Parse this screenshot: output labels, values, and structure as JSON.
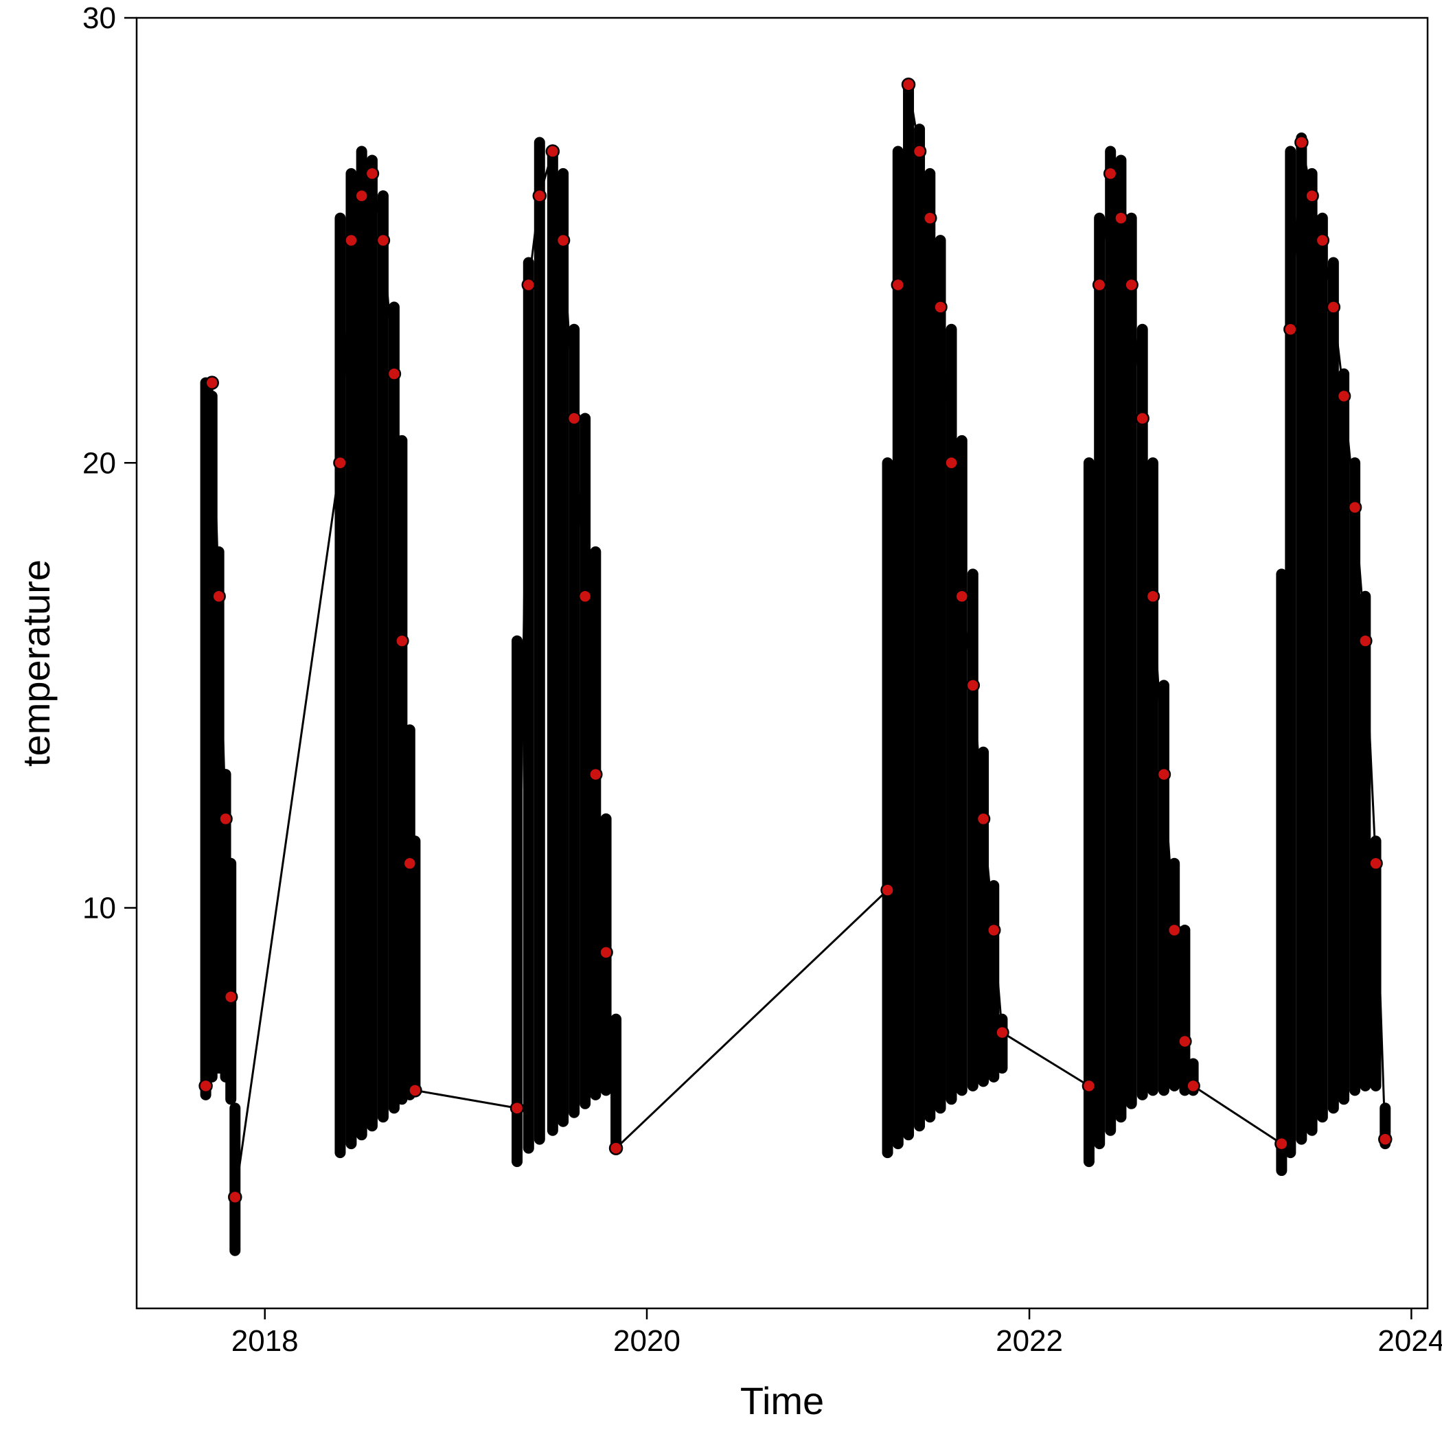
{
  "chart_data": {
    "type": "line",
    "title": "",
    "xlabel": "Time",
    "ylabel": "temperature",
    "x_scale": "date",
    "xlim": [
      "2017-05-01",
      "2024-02-01"
    ],
    "ylim": [
      1,
      30
    ],
    "x_ticks": [
      {
        "label": "2018",
        "value": "2018-01-01"
      },
      {
        "label": "2020",
        "value": "2020-01-01"
      },
      {
        "label": "2022",
        "value": "2022-01-01"
      },
      {
        "label": "2024",
        "value": "2024-01-01"
      }
    ],
    "y_ticks": [
      {
        "label": "10",
        "value": 10
      },
      {
        "label": "20",
        "value": 20
      },
      {
        "label": "30",
        "value": 30
      }
    ],
    "grid": false,
    "legend": "none",
    "marker_fill": "#cc1111",
    "marker_edge": "#000000",
    "line_color": "#000000",
    "series": [
      {
        "x": [
          "2017-09-10",
          "2017-09-22",
          "2017-10-05",
          "2017-10-18",
          "2017-10-28",
          "2017-11-05",
          "2018-05-25",
          "2018-06-15",
          "2018-07-05",
          "2018-07-25",
          "2018-08-15",
          "2018-09-05",
          "2018-09-20",
          "2018-10-05",
          "2018-10-15",
          "2019-04-28",
          "2019-05-20",
          "2019-06-10",
          "2019-07-05",
          "2019-07-25",
          "2019-08-15",
          "2019-09-05",
          "2019-09-25",
          "2019-10-15",
          "2019-11-03",
          "2021-04-05",
          "2021-04-25",
          "2021-05-15",
          "2021-06-05",
          "2021-06-25",
          "2021-07-15",
          "2021-08-05",
          "2021-08-25",
          "2021-09-15",
          "2021-10-05",
          "2021-10-25",
          "2021-11-10",
          "2022-04-25",
          "2022-05-15",
          "2022-06-05",
          "2022-06-25",
          "2022-07-15",
          "2022-08-05",
          "2022-08-25",
          "2022-09-15",
          "2022-10-05",
          "2022-10-25",
          "2022-11-10",
          "2023-04-28",
          "2023-05-15",
          "2023-06-05",
          "2023-06-25",
          "2023-07-15",
          "2023-08-05",
          "2023-08-25",
          "2023-09-15",
          "2023-10-05",
          "2023-10-25",
          "2023-11-12"
        ],
        "y": [
          6,
          21.8,
          17,
          12,
          8,
          3.5,
          20,
          25,
          26,
          26.5,
          25,
          22,
          16,
          11,
          5.9,
          5.5,
          24,
          26,
          27,
          25,
          21,
          17,
          13,
          9,
          4.6,
          10.4,
          24,
          28.5,
          27,
          25.5,
          23.5,
          20,
          17,
          15,
          12,
          9.5,
          7.2,
          6,
          24,
          26.5,
          25.5,
          24,
          21,
          17,
          13,
          9.5,
          7,
          6,
          4.7,
          23,
          27.2,
          26,
          25,
          23.5,
          21.5,
          19,
          16,
          11,
          4.8
        ],
        "y_min": [
          5.8,
          6.2,
          6.4,
          6.2,
          5.7,
          2.3,
          4.5,
          4.7,
          4.9,
          5.1,
          5.3,
          5.5,
          5.7,
          5.8,
          5.9,
          4.3,
          4.6,
          4.8,
          5.0,
          5.2,
          5.4,
          5.6,
          5.8,
          5.9,
          4.6,
          4.5,
          4.7,
          4.9,
          5.1,
          5.3,
          5.5,
          5.7,
          5.9,
          6.0,
          6.1,
          6.2,
          6.4,
          4.3,
          4.7,
          5.0,
          5.3,
          5.6,
          5.8,
          5.9,
          5.9,
          6.0,
          5.9,
          5.9,
          4.1,
          4.5,
          4.8,
          5.0,
          5.3,
          5.5,
          5.7,
          5.9,
          6.0,
          6.0,
          4.7
        ],
        "y_max": [
          21.8,
          21.5,
          18,
          13,
          11,
          5.5,
          25.5,
          26.5,
          27.0,
          26.8,
          26.0,
          23.5,
          20.5,
          14.0,
          11.5,
          16.0,
          24.5,
          27.2,
          27.0,
          26.5,
          23.0,
          21.0,
          18.0,
          12.0,
          7.5,
          20.0,
          27.0,
          28.5,
          27.5,
          26.5,
          25.0,
          23.0,
          20.5,
          17.5,
          13.5,
          10.5,
          7.5,
          20.0,
          25.5,
          27.0,
          26.8,
          25.5,
          23.0,
          20.0,
          15.0,
          11.0,
          9.5,
          6.5,
          17.5,
          27.0,
          27.3,
          26.5,
          25.5,
          24.5,
          22.0,
          20.0,
          17.0,
          11.5,
          5.5
        ]
      }
    ]
  }
}
